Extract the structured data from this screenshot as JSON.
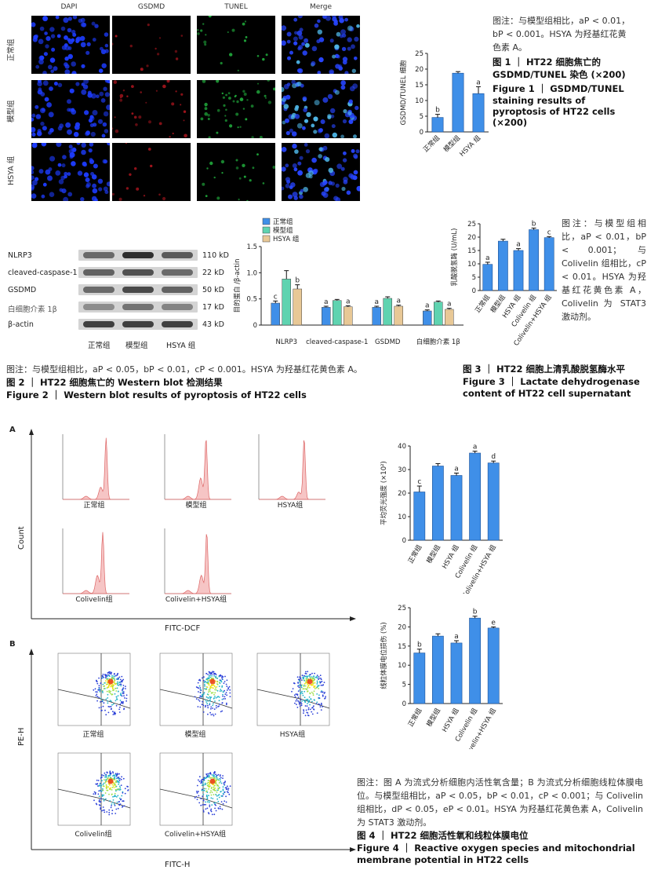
{
  "fig1": {
    "col_labels": [
      "DAPI",
      "GSDMD",
      "TUNEL",
      "Merge"
    ],
    "row_labels": [
      "正常组",
      "模型组",
      "HSYA 组"
    ],
    "caption_note": "图注：与模型组相比，aP < 0.01，bP < 0.001。HSYA 为羟基红花黄色素 A。",
    "title_cn": "图 1 ｜ HT22 细胞焦亡的 GSDMD/TUNEL 染色 (×200)",
    "title_en": "Figure 1 ｜ GSDMD/TUNEL staining results of pyroptosis of HT22 cells (×200)"
  },
  "fig2": {
    "wb_rows": [
      {
        "name": "NLRP3",
        "size": "110 kD"
      },
      {
        "name": "cleaved-caspase-1",
        "size": "22 kD"
      },
      {
        "name": "GSDMD",
        "size": "50 kD"
      },
      {
        "name": "白细胞介素 1β",
        "size": "17 kD"
      },
      {
        "name": "β-actin",
        "size": "43 kD"
      }
    ],
    "wb_groups": [
      "正常组",
      "模型组",
      "HSYA 组"
    ],
    "caption_note": "图注：与模型组相比，aP < 0.05，bP < 0.01，cP < 0.001。HSYA 为羟基红花黄色素 A。",
    "title_cn": "图 2 ｜ HT22 细胞焦亡的 Western blot 检测结果",
    "title_en": "Figure 2 ｜ Western blot results of pyroptosis of HT22 cells"
  },
  "fig3": {
    "caption_note": "图注：与模型组相比，aP < 0.01，bP < 0.001；与 Colivelin 组相比，cP < 0.01。HSYA 为羟基红花黄色素 A，Colivelin 为 STAT3 激动剂。",
    "title_cn": "图 3 ｜ HT22 细胞上清乳酸脱氢酶水平",
    "title_en": "Figure 3 ｜ Lactate dehydrogenase content of HT22 cell supernatant"
  },
  "fig4": {
    "panel_a": "A",
    "panel_b": "B",
    "flow_a_labels": [
      "正常组",
      "模型组",
      "HSYA组",
      "Colivelin组",
      "Colivelin+HSYA组"
    ],
    "flow_a_xlabel": "FITC-DCF",
    "flow_a_ylabel": "Count",
    "flow_b_labels": [
      "正常组",
      "模型组",
      "HSYA组",
      "Colivelin组",
      "Colivelin+HSYA组"
    ],
    "flow_b_xlabel": "FITC-H",
    "flow_b_ylabel": "PE-H",
    "caption_note": "图注：图 A 为流式分析细胞内活性氧含量；B 为流式分析细胞线粒体膜电位。与模型组相比，aP < 0.05，bP < 0.01，cP < 0.001；与 Colivelin 组相比，dP < 0.05，eP < 0.01。HSYA 为羟基红花黄色素 A，Colivelin 为 STAT3 激动剂。",
    "title_cn": "图 4 ｜ HT22 细胞活性氧和线粒体膜电位",
    "title_en": "Figure 4 ｜ Reactive oxygen species and mitochondrial membrane potential in HT22 cells"
  },
  "chart_data": [
    {
      "id": "fig1_bar",
      "type": "bar",
      "categories": [
        "正常组",
        "模型组",
        "HSYA 组"
      ],
      "values": [
        4.6,
        18.7,
        12.2
      ],
      "errors": [
        1.0,
        0.5,
        2.2
      ],
      "sig": [
        "b",
        "",
        "a"
      ],
      "ylabel": "GSDMD/TUNEL 细胞",
      "ylim": [
        0,
        25
      ],
      "yticks": [
        0,
        5,
        10,
        15,
        20,
        25
      ],
      "colors": {
        "bar": "#3f8fe8"
      }
    },
    {
      "id": "fig2_bar",
      "type": "bar",
      "categories": [
        "NLRP3",
        "cleaved-caspase-1",
        "GSDMD",
        "白细胞介素 1β"
      ],
      "series": [
        {
          "name": "正常组",
          "values": [
            0.42,
            0.34,
            0.34,
            0.27
          ],
          "errors": [
            0.04,
            0.02,
            0.02,
            0.02
          ],
          "sig": [
            "c",
            "a",
            "a",
            "a"
          ]
        },
        {
          "name": "模型组",
          "values": [
            0.88,
            0.47,
            0.51,
            0.44
          ],
          "errors": [
            0.16,
            0.02,
            0.03,
            0.02
          ],
          "sig": [
            "",
            "",
            "",
            ""
          ]
        },
        {
          "name": "HSYA 组",
          "values": [
            0.69,
            0.35,
            0.36,
            0.3
          ],
          "errors": [
            0.08,
            0.02,
            0.02,
            0.02
          ],
          "sig": [
            "b",
            "a",
            "a",
            "a"
          ]
        }
      ],
      "ylabel": "目的蛋白 /β-actin",
      "ylim": [
        0,
        1.5
      ],
      "yticks": [
        0,
        0.5,
        1.0,
        1.5
      ],
      "legend": "top-left",
      "colors": {
        "s0": "#3f8fe8",
        "s1": "#5fd3b0",
        "s2": "#e8c896"
      }
    },
    {
      "id": "fig3_bar",
      "type": "bar",
      "categories": [
        "正常组",
        "模型组",
        "HSYA 组",
        "Colivelin 组",
        "Colivelin+HSYA 组"
      ],
      "values": [
        9.8,
        18.5,
        15.0,
        22.8,
        19.8
      ],
      "errors": [
        0.8,
        0.7,
        0.7,
        0.6,
        0.4
      ],
      "sig": [
        "a",
        "",
        "a",
        "b",
        "c"
      ],
      "ylabel": "乳酸脱氢酶 (U/mL)",
      "ylim": [
        0,
        25
      ],
      "yticks": [
        0,
        5,
        10,
        15,
        20,
        25
      ]
    },
    {
      "id": "fig4_ros",
      "type": "bar",
      "categories": [
        "正常组",
        "模型组",
        "HSYA 组",
        "Colivelin 组",
        "Colivelin+HSYA 组"
      ],
      "values": [
        20.5,
        31.5,
        27.5,
        37.0,
        32.8
      ],
      "errors": [
        2.5,
        1.0,
        1.0,
        0.8,
        0.8
      ],
      "sig": [
        "c",
        "",
        "a",
        "a",
        "d"
      ],
      "ylabel": "平均荧光强度 (×10²)",
      "ylim": [
        0,
        40
      ],
      "yticks": [
        0,
        10,
        20,
        30,
        40
      ]
    },
    {
      "id": "fig4_mmp",
      "type": "bar",
      "categories": [
        "正常组",
        "模型组",
        "HSYA 组",
        "Colivelin 组",
        "Colivelin+HSYA 组"
      ],
      "values": [
        13.2,
        17.6,
        15.8,
        22.3,
        19.7
      ],
      "errors": [
        1.0,
        0.6,
        0.6,
        0.5,
        0.3
      ],
      "sig": [
        "b",
        "",
        "a",
        "b",
        "e"
      ],
      "ylabel": "线粒体膜电位损伤 (%)",
      "ylim": [
        0,
        25
      ],
      "yticks": [
        0,
        5,
        10,
        15,
        20,
        25
      ]
    }
  ]
}
